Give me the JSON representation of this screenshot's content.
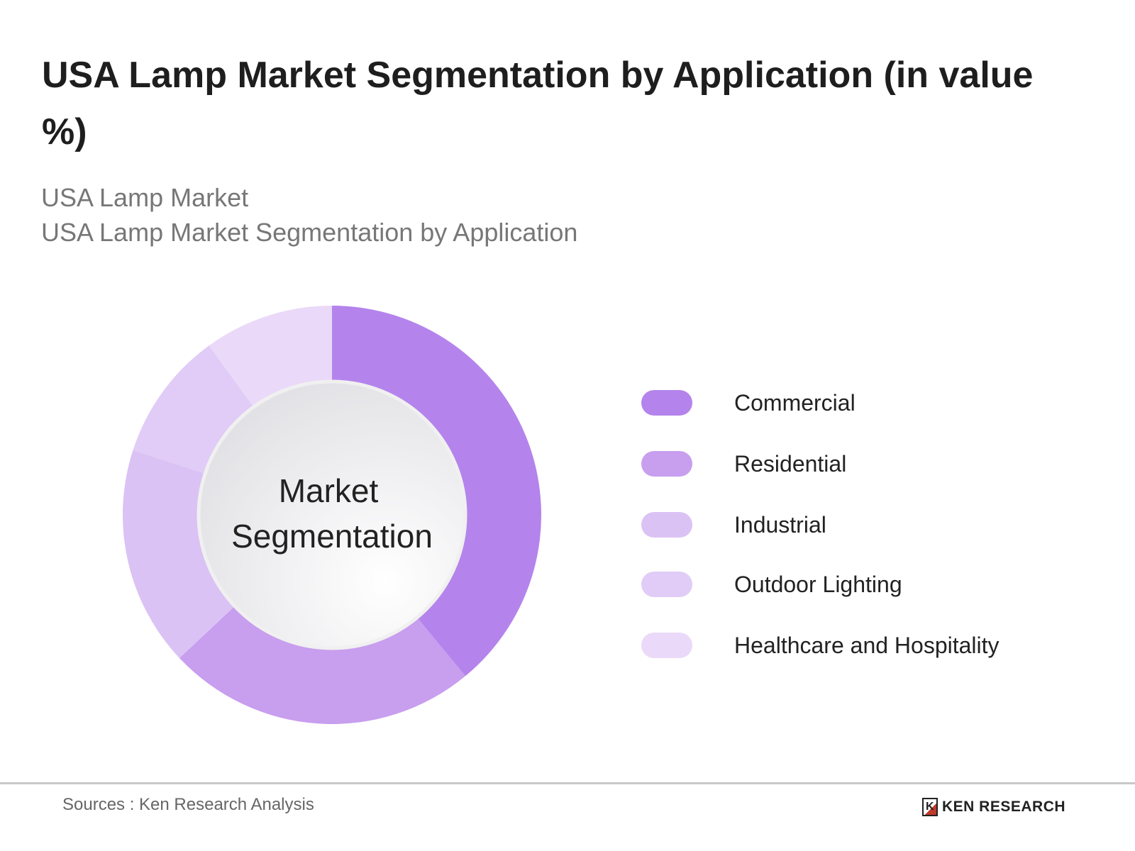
{
  "title": "USA Lamp Market Segmentation by Application (in value %)",
  "subtitle1": "USA Lamp Market",
  "subtitle2": "USA Lamp Market Segmentation by Application",
  "source": "Sources : Ken Research Analysis",
  "logo_text": "KEN RESEARCH",
  "chart_data": {
    "type": "pie",
    "donut": true,
    "center_label_line1": "Market",
    "center_label_line2": "Segmentation",
    "categories": [
      "Commercial",
      "Residential",
      "Industrial",
      "Outdoor Lighting",
      "Healthcare and Hospitality"
    ],
    "values": [
      39,
      24,
      17,
      10,
      10
    ],
    "colors": [
      "#b484ec",
      "#c89eef",
      "#dac2f5",
      "#e0ccf6",
      "#ead9f9"
    ],
    "legend_position": "right"
  }
}
